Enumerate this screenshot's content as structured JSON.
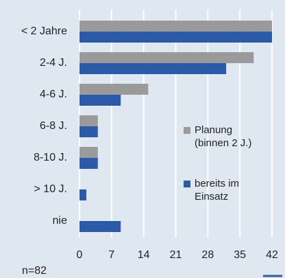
{
  "chart_data": {
    "type": "hbar",
    "categories": [
      "< 2 Jahre",
      "2-4 J.",
      "4-6 J.",
      "6-8 J.",
      "8-10 J.",
      "> 10 J.",
      "nie"
    ],
    "series": [
      {
        "name": "Planung\n(binnen 2 J.)",
        "color": "#9a9a9a",
        "values": [
          42,
          38,
          15,
          4,
          4,
          0,
          0
        ]
      },
      {
        "name": "bereits im\nEinsatz",
        "color": "#2b5ba8",
        "values": [
          42,
          32,
          9,
          4,
          4,
          1.5,
          9
        ]
      }
    ],
    "xlim": [
      0,
      42
    ],
    "xticks": [
      0,
      7,
      14,
      21,
      28,
      35,
      42
    ],
    "grid": true,
    "annotation": "n=82"
  }
}
